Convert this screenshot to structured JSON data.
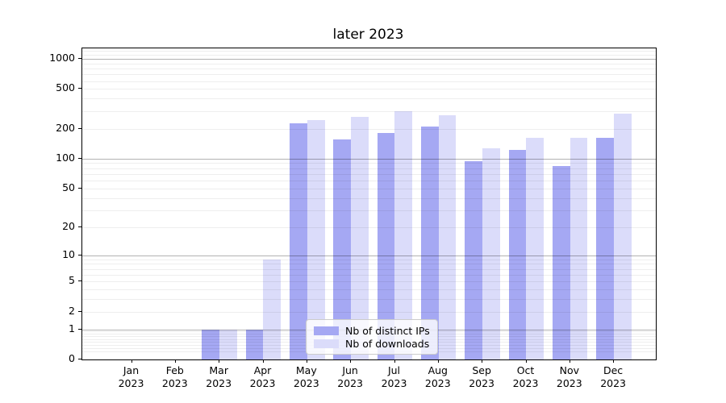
{
  "chart_data": {
    "type": "bar",
    "title": "later 2023",
    "x_ticks": [
      {
        "month": "Jan",
        "year": "2023"
      },
      {
        "month": "Feb",
        "year": "2023"
      },
      {
        "month": "Mar",
        "year": "2023"
      },
      {
        "month": "Apr",
        "year": "2023"
      },
      {
        "month": "May",
        "year": "2023"
      },
      {
        "month": "Jun",
        "year": "2023"
      },
      {
        "month": "Jul",
        "year": "2023"
      },
      {
        "month": "Aug",
        "year": "2023"
      },
      {
        "month": "Sep",
        "year": "2023"
      },
      {
        "month": "Oct",
        "year": "2023"
      },
      {
        "month": "Nov",
        "year": "2023"
      },
      {
        "month": "Dec",
        "year": "2023"
      }
    ],
    "series": [
      {
        "name": "Nb of distinct IPs",
        "color": "#a5a8f3",
        "values": [
          0,
          0,
          1,
          1,
          225,
          156,
          181,
          212,
          95,
          122,
          85,
          163
        ]
      },
      {
        "name": "Nb of downloads",
        "color": "#dbdcfa",
        "values": [
          0,
          0,
          1,
          9,
          245,
          263,
          300,
          272,
          127,
          163,
          163,
          283
        ]
      }
    ],
    "yscale": "log(v+1)",
    "ylim": [
      0,
      1272
    ],
    "y_ticks": [
      "0",
      "1",
      "2",
      "5",
      "10",
      "20",
      "50",
      "100",
      "200",
      "500",
      "1000"
    ],
    "y_major_gridlines": [
      1,
      10,
      100,
      1000
    ],
    "y_minor_gridlines": [
      0.2,
      0.3,
      0.4,
      0.5,
      0.6,
      0.7,
      0.8,
      0.9,
      2,
      3,
      4,
      5,
      6,
      7,
      8,
      9,
      20,
      30,
      40,
      50,
      60,
      70,
      80,
      90,
      200,
      300,
      400,
      500,
      600,
      700,
      800,
      900,
      1100,
      1200
    ],
    "grid": true,
    "legend_position": "lower center (inside plot)"
  }
}
